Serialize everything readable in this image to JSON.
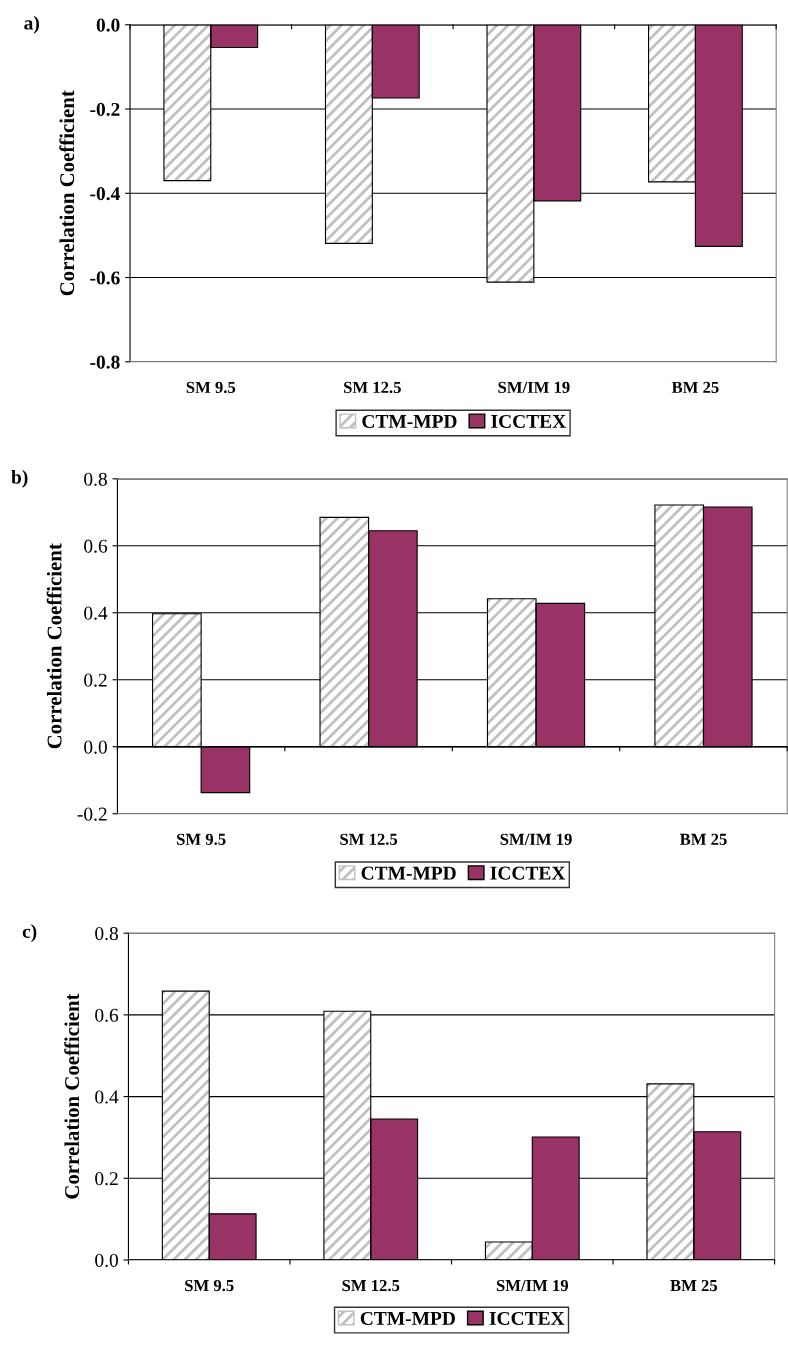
{
  "chart_data": [
    {
      "type": "bar",
      "title": "a)",
      "ylabel": "Correlation Coefficient",
      "categories": [
        "SM 9.5",
        "SM 12.5",
        "SM/IM 19",
        "BM 25"
      ],
      "series": [
        {
          "name": "CTM-MPD",
          "color": "#c0c0c0",
          "values": [
            -0.37,
            -0.519,
            -0.611,
            -0.373
          ]
        },
        {
          "name": "ICCTEX",
          "color": "#993366",
          "values": [
            -0.054,
            -0.174,
            -0.418,
            -0.526
          ]
        }
      ],
      "ylim": [
        -0.8,
        0.0
      ],
      "yticks": [
        {
          "value": -0.8,
          "label": "-0.8"
        },
        {
          "value": -0.6,
          "label": "-0.6"
        },
        {
          "value": -0.4,
          "label": "-0.4"
        },
        {
          "value": -0.2,
          "label": "-0.2"
        },
        {
          "value": 0.0,
          "label": "0.0"
        }
      ],
      "grid": "y",
      "legend": "bottom"
    },
    {
      "type": "bar",
      "title": "b)",
      "ylabel": "Correlation Coefficient",
      "categories": [
        "SM 9.5",
        "SM 12.5",
        "SM/IM 19",
        "BM 25"
      ],
      "series": [
        {
          "name": "CTM-MPD",
          "color": "#c0c0c0",
          "values": [
            0.397,
            0.685,
            0.442,
            0.722
          ]
        },
        {
          "name": "ICCTEX",
          "color": "#993366",
          "values": [
            -0.137,
            0.645,
            0.428,
            0.716
          ]
        }
      ],
      "ylim": [
        -0.2,
        0.8
      ],
      "yticks": [
        {
          "value": -0.2,
          "label": "-0.2"
        },
        {
          "value": 0.0,
          "label": "0.0"
        },
        {
          "value": 0.2,
          "label": "0.2"
        },
        {
          "value": 0.4,
          "label": "0.4"
        },
        {
          "value": 0.6,
          "label": "0.6"
        },
        {
          "value": 0.8,
          "label": "0.8"
        }
      ],
      "grid": "y",
      "legend": "bottom"
    },
    {
      "type": "bar",
      "title": "c)",
      "ylabel": "Correlation Coefficient",
      "categories": [
        "SM 9.5",
        "SM 12.5",
        "SM/IM 19",
        "BM 25"
      ],
      "series": [
        {
          "name": "CTM-MPD",
          "color": "#c0c0c0",
          "values": [
            0.658,
            0.609,
            0.044,
            0.431
          ]
        },
        {
          "name": "ICCTEX",
          "color": "#993366",
          "values": [
            0.113,
            0.345,
            0.301,
            0.314
          ]
        }
      ],
      "ylim": [
        0.0,
        0.8
      ],
      "yticks": [
        {
          "value": 0.0,
          "label": "0.0"
        },
        {
          "value": 0.2,
          "label": "0.2"
        },
        {
          "value": 0.4,
          "label": "0.4"
        },
        {
          "value": 0.6,
          "label": "0.6"
        },
        {
          "value": 0.8,
          "label": "0.8"
        }
      ],
      "grid": "y",
      "legend": "bottom"
    }
  ]
}
